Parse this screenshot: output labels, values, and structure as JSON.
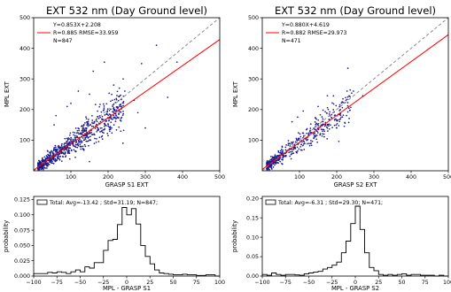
{
  "charts": [
    {
      "type": "scatter",
      "title": "EXT 532 nm (Day Ground level)",
      "xlabel": "GRASP S1 EXT",
      "ylabel": "MPL EXT",
      "xlim": [
        0,
        500
      ],
      "ylim": [
        0,
        500
      ],
      "xticks": [
        100,
        200,
        300,
        400,
        500
      ],
      "yticks": [
        100,
        200,
        300,
        400,
        500
      ],
      "legend": [
        "Y=0.853X+2.208",
        "R=0.885  RMSE=33.959",
        "N=847"
      ],
      "legend_position": "top-left",
      "fit": {
        "slope": 0.853,
        "intercept": 2.208
      },
      "one_to_one": true,
      "n": 847,
      "point_color": "#1a1a8c",
      "fit_color": "#ff0000",
      "identity_color": "#808080",
      "outliers": [
        [
          60,
          180
        ],
        [
          100,
          220
        ],
        [
          120,
          260
        ],
        [
          150,
          250
        ],
        [
          160,
          325
        ],
        [
          190,
          355
        ],
        [
          215,
          280
        ],
        [
          245,
          260
        ],
        [
          270,
          230
        ],
        [
          280,
          190
        ],
        [
          290,
          350
        ],
        [
          330,
          410
        ],
        [
          360,
          240
        ],
        [
          385,
          355
        ],
        [
          150,
          30
        ],
        [
          200,
          115
        ],
        [
          240,
          90
        ],
        [
          300,
          140
        ],
        [
          55,
          150
        ],
        [
          90,
          210
        ]
      ]
    },
    {
      "type": "scatter",
      "title": "EXT 532 nm (Day Ground level)",
      "xlabel": "GRASP S2 EXT",
      "ylabel": "MPL EXT",
      "xlim": [
        0,
        500
      ],
      "ylim": [
        0,
        500
      ],
      "xticks": [
        100,
        200,
        300,
        400,
        500
      ],
      "yticks": [
        100,
        200,
        300,
        400,
        500
      ],
      "legend": [
        "Y=0.880X+4.619",
        "R=0.882  RMSE=29.973",
        "N=471"
      ],
      "legend_position": "top-left",
      "fit": {
        "slope": 0.88,
        "intercept": 4.619
      },
      "one_to_one": true,
      "n": 471,
      "point_color": "#1a1a8c",
      "fit_color": "#ff0000",
      "identity_color": "#808080",
      "outliers": [
        [
          215,
          225
        ],
        [
          230,
          335
        ],
        [
          245,
          260
        ],
        [
          270,
          245
        ],
        [
          110,
          195
        ],
        [
          150,
          210
        ],
        [
          175,
          245
        ],
        [
          200,
          140
        ],
        [
          95,
          175
        ],
        [
          80,
          160
        ]
      ]
    },
    {
      "type": "histogram",
      "xlabel": "MPL - GRASP S1",
      "ylabel": "probability",
      "xlim": [
        -100,
        100
      ],
      "ylim": [
        0,
        0.13
      ],
      "xticks": [
        -100,
        -75,
        -50,
        -25,
        0,
        25,
        50,
        75,
        100
      ],
      "yticks": [
        0.0,
        0.025,
        0.05,
        0.075,
        0.1,
        0.125
      ],
      "ytick_labels": [
        "0.000",
        "0.025",
        "0.050",
        "0.075",
        "0.100",
        "0.125"
      ],
      "legend": "Total: Avg=-13.42 ; Std=31.19; N=847;",
      "legend_position": "top-left",
      "bin_edges": [
        -100,
        -95,
        -90,
        -85,
        -80,
        -75,
        -70,
        -65,
        -60,
        -55,
        -50,
        -45,
        -40,
        -35,
        -30,
        -25,
        -20,
        -15,
        -10,
        -5,
        0,
        5,
        10,
        15,
        20,
        25,
        30,
        35,
        40,
        45,
        50,
        55,
        60,
        65,
        70,
        75,
        80,
        85,
        90,
        95,
        100
      ],
      "values": [
        0.004,
        0.004,
        0.004,
        0.006,
        0.005,
        0.007,
        0.006,
        0.004,
        0.007,
        0.01,
        0.007,
        0.015,
        0.013,
        0.022,
        0.022,
        0.042,
        0.058,
        0.06,
        0.084,
        0.112,
        0.1,
        0.11,
        0.085,
        0.05,
        0.032,
        0.02,
        0.01,
        0.005,
        0.004,
        0.003,
        0.002,
        0.002,
        0.003,
        0.002,
        0.002,
        0.001,
        0.001,
        0.002,
        0.002,
        0.0
      ],
      "color": "#000000"
    },
    {
      "type": "histogram",
      "xlabel": "MPL - GRASP S2",
      "ylabel": "probability",
      "xlim": [
        -100,
        100
      ],
      "ylim": [
        0,
        0.205
      ],
      "xticks": [
        -100,
        -75,
        -50,
        -25,
        0,
        25,
        50,
        75,
        100
      ],
      "yticks": [
        0.0,
        0.05,
        0.1,
        0.15,
        0.2
      ],
      "ytick_labels": [
        "0.00",
        "0.05",
        "0.10",
        "0.15",
        "0.20"
      ],
      "legend": "Total: Avg=-6.31 ; Std=29.30; N=471;",
      "legend_position": "top-left",
      "bin_edges": [
        -100,
        -95,
        -90,
        -85,
        -80,
        -75,
        -70,
        -65,
        -60,
        -55,
        -50,
        -45,
        -40,
        -35,
        -30,
        -25,
        -20,
        -15,
        -10,
        -5,
        0,
        5,
        10,
        15,
        20,
        25,
        30,
        35,
        40,
        45,
        50,
        55,
        60,
        65,
        70,
        75,
        80,
        85,
        90,
        95,
        100
      ],
      "values": [
        0.004,
        0.002,
        0.008,
        0.004,
        0.002,
        0.004,
        0.004,
        0.003,
        0.002,
        0.006,
        0.008,
        0.01,
        0.012,
        0.018,
        0.022,
        0.028,
        0.036,
        0.06,
        0.09,
        0.135,
        0.18,
        0.12,
        0.06,
        0.022,
        0.014,
        0.004,
        0.002,
        0.004,
        0.002,
        0.004,
        0.006,
        0.002,
        0.004,
        0.004,
        0.002,
        0.002,
        0.002,
        0.0,
        0.002,
        0.0
      ],
      "color": "#000000"
    }
  ]
}
